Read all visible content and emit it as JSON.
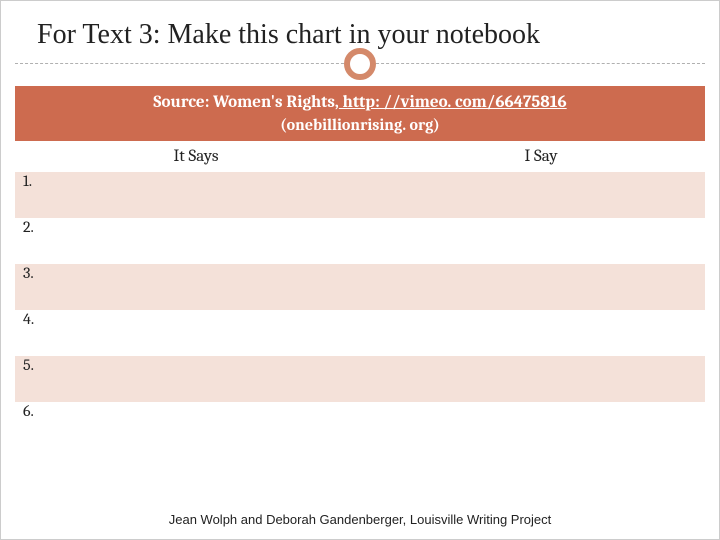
{
  "title": "For Text 3: Make this chart in your notebook",
  "source": {
    "prefix": "Source:  Women's Rights,",
    "link_text": " http: //vimeo. com/66475816",
    "link_href": "http://vimeo.com/66475816",
    "sub": "(onebillionrising. org)"
  },
  "columns": {
    "col1": "It Says",
    "col2": "I Say"
  },
  "rows": [
    {
      "num": "1.",
      "it_says": "",
      "i_say": ""
    },
    {
      "num": "2.",
      "it_says": "",
      "i_say": ""
    },
    {
      "num": "3.",
      "it_says": "",
      "i_say": ""
    },
    {
      "num": "4.",
      "it_says": "",
      "i_say": ""
    },
    {
      "num": "5.",
      "it_says": "",
      "i_say": ""
    },
    {
      "num": "6.",
      "it_says": "",
      "i_say": ""
    }
  ],
  "footer": "Jean Wolph and Deborah Gandenberger, Louisville Writing Project",
  "colors": {
    "accent": "#cd6b4f",
    "row_odd": "#f4e1d9",
    "row_even": "#ffffff",
    "ring": "#d4896a",
    "dash": "#b0b0b0"
  }
}
